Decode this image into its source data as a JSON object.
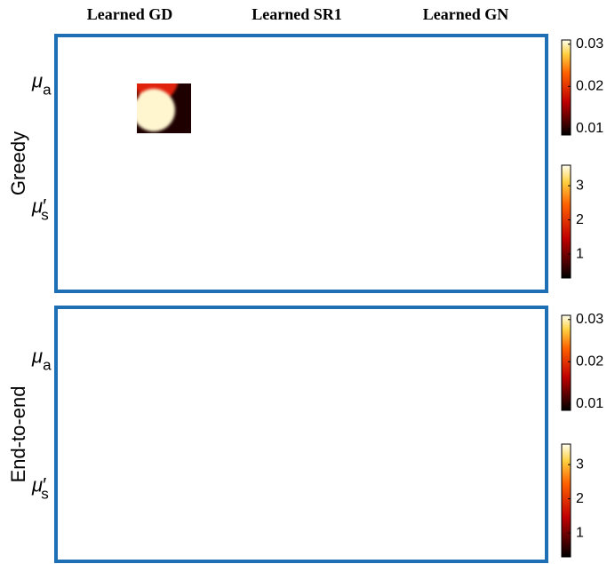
{
  "column_titles": [
    "Learned GD",
    "Learned SR1",
    "Learned GN"
  ],
  "groups": [
    {
      "label": "Greedy"
    },
    {
      "label": "End-to-end"
    }
  ],
  "row_labels": [
    {
      "symbol": "μ",
      "subscript": "a"
    },
    {
      "symbol": "μ",
      "prime": "′",
      "subscript": "s"
    }
  ],
  "colorbars": [
    {
      "lim": [
        0.0085,
        0.031
      ],
      "ticks": [
        0.01,
        0.02,
        0.03
      ]
    },
    {
      "lim": [
        0.3,
        3.6
      ],
      "ticks": [
        1,
        2,
        3
      ]
    }
  ]
}
